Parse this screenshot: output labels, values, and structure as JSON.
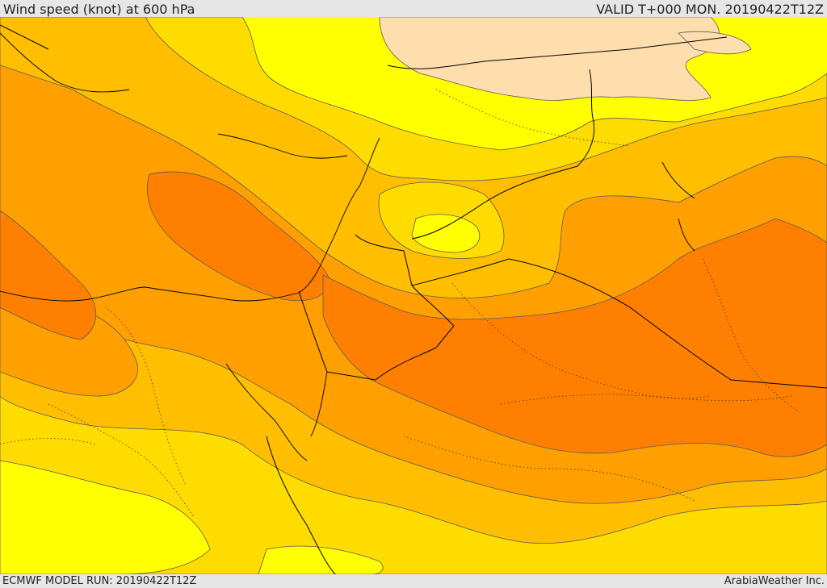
{
  "header": {
    "title": "Wind speed (knot) at 600 hPa",
    "valid": "VALID T+000 MON. 20190422T12Z"
  },
  "footer": {
    "model_run": "ECMWF MODEL RUN: 20190422T12Z",
    "credit": "ArabiaWeather Inc."
  },
  "map": {
    "colors": {
      "background_band": "#ffff00",
      "band_light": "#ffdc00",
      "band_mid": "#ffbe00",
      "band_strong": "#ffa000",
      "band_max": "#ff8000",
      "band_calm": "#ffdead",
      "contour": "#5a5a5a",
      "border": "#000000"
    }
  }
}
